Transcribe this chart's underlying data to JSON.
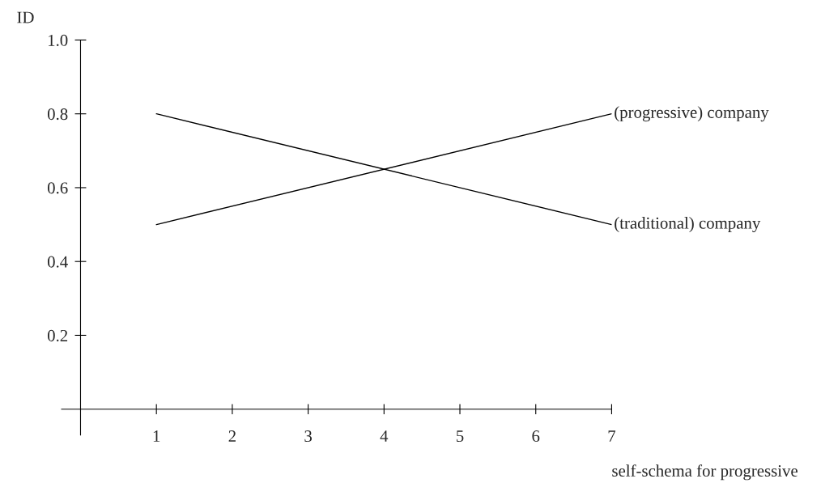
{
  "chart_data": {
    "type": "line",
    "xlabel": "self-schema for progressive",
    "ylabel": "ID",
    "x": [
      1,
      7
    ],
    "series": [
      {
        "name": "(progressive) company",
        "color": "#000000",
        "values": [
          0.5,
          0.8
        ]
      },
      {
        "name": "(traditional) company",
        "color": "#000000",
        "values": [
          0.8,
          0.5
        ]
      }
    ],
    "xlim": [
      -0.25,
      7
    ],
    "xticks": [
      1,
      2,
      3,
      4,
      5,
      6,
      7
    ],
    "ylim": [
      -0.07,
      1.0
    ],
    "yticks": [
      0.2,
      0.4,
      0.6,
      0.8,
      {
        "value": 1.0,
        "label": "1.0"
      }
    ],
    "grid": false,
    "legend": false,
    "marker": "none",
    "line_style": "solid"
  }
}
